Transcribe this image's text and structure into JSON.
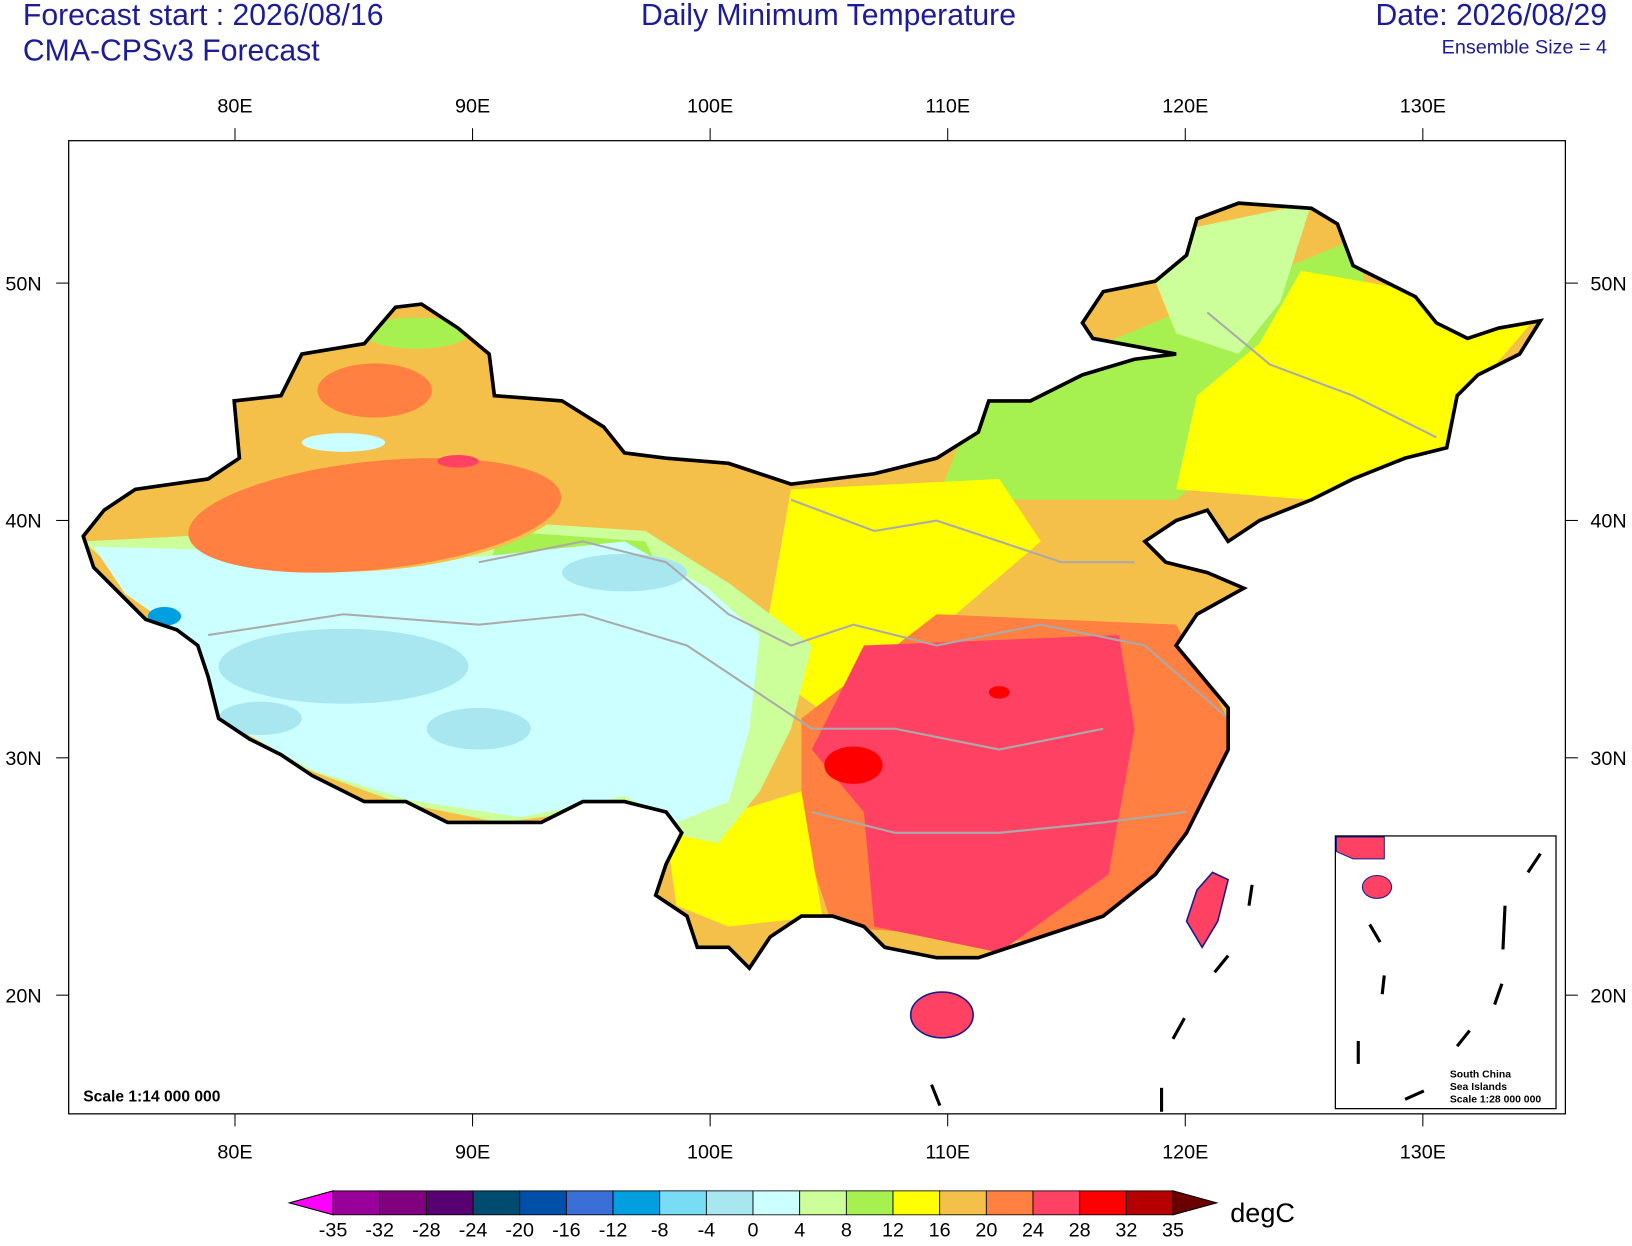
{
  "header": {
    "forecast_start": "Forecast start : 2026/08/16",
    "model": "CMA-CPSv3 Forecast",
    "title": "Daily Minimum Temperature",
    "date": "Date: 2026/08/29",
    "ensemble": "Ensemble Size = 4"
  },
  "map": {
    "lon_range": [
      73,
      136
    ],
    "lat_range": [
      15,
      56
    ],
    "lon_ticks": [
      {
        "value": 80,
        "label": "80E"
      },
      {
        "value": 90,
        "label": "90E"
      },
      {
        "value": 100,
        "label": "100E"
      },
      {
        "value": 110,
        "label": "110E"
      },
      {
        "value": 120,
        "label": "120E"
      },
      {
        "value": 130,
        "label": "130E"
      }
    ],
    "lat_ticks": [
      {
        "value": 20,
        "label": "20N"
      },
      {
        "value": 30,
        "label": "30N"
      },
      {
        "value": 40,
        "label": "40N"
      },
      {
        "value": 50,
        "label": "50N"
      }
    ],
    "scale": "Scale 1:14 000 000"
  },
  "inset": {
    "lines": [
      "South China",
      "Sea Islands",
      "Scale 1:28 000 000"
    ]
  },
  "colorbar": {
    "levels": [
      -35,
      -32,
      -28,
      -24,
      -20,
      -16,
      -12,
      -8,
      -4,
      0,
      4,
      8,
      12,
      16,
      20,
      24,
      28,
      32,
      35
    ],
    "colors": [
      "#ff00ff",
      "#99009a",
      "#800080",
      "#580072",
      "#004c70",
      "#0050aa",
      "#3a6fd8",
      "#00a0e0",
      "#78dcf5",
      "#a8e6f0",
      "#ccffff",
      "#ccff99",
      "#a6f050",
      "#ffff00",
      "#f5c04a",
      "#ff8040",
      "#ff4264",
      "#ff0000",
      "#b40000",
      "#6a0000"
    ],
    "unit": "degC"
  }
}
